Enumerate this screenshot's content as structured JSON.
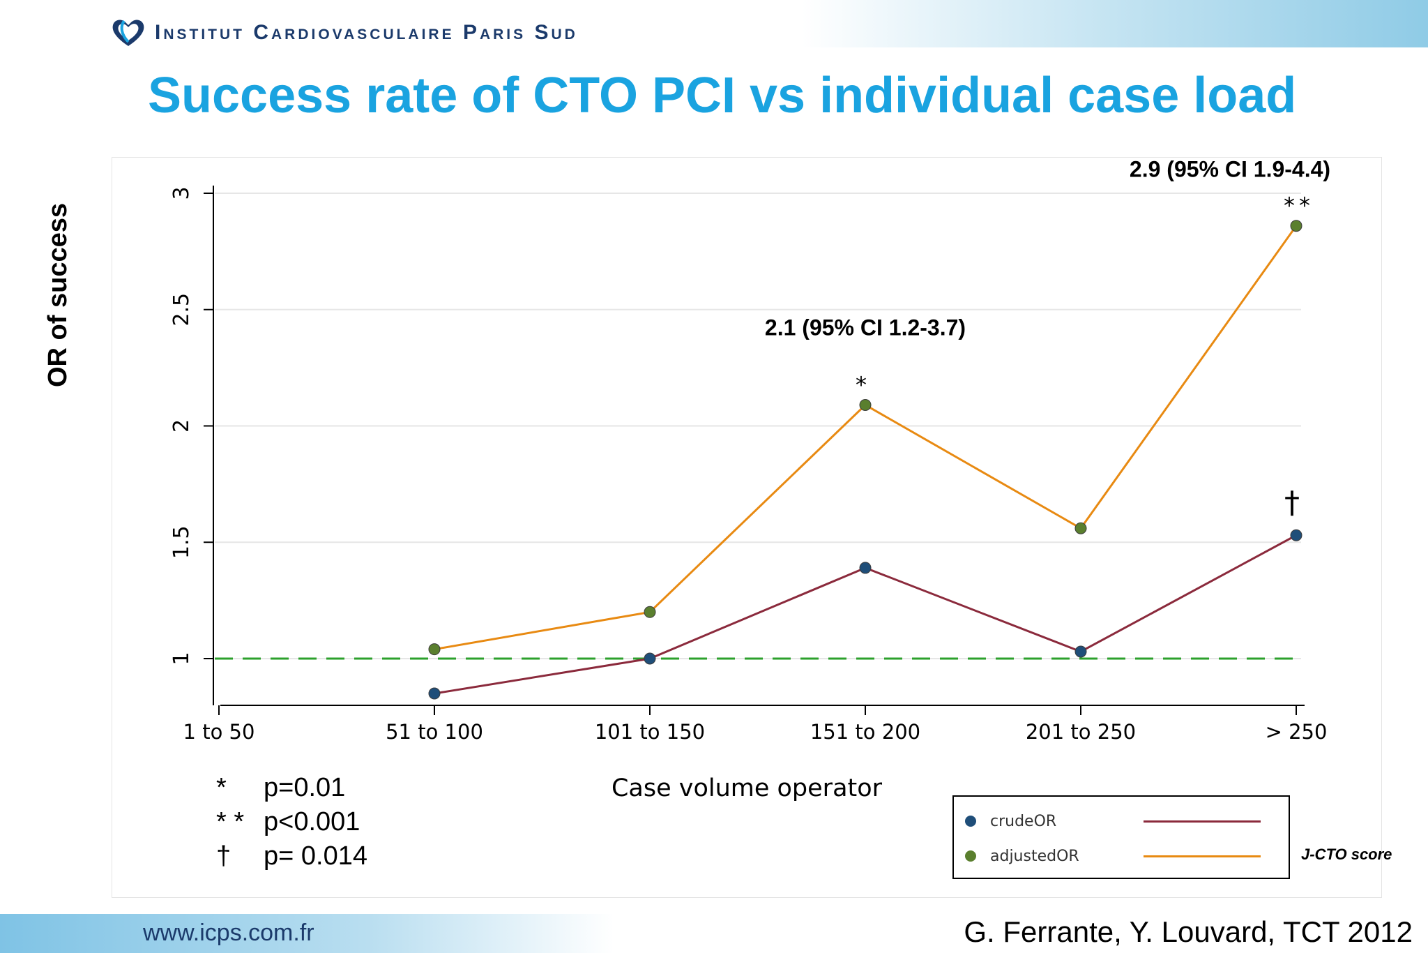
{
  "header": {
    "brand": "Institut Cardiovasculaire Paris Sud",
    "title": "Success rate of CTO PCI vs individual case load"
  },
  "colors": {
    "title": "#1aa3e0",
    "brand": "#1b3a6b",
    "crude_line": "#8b2a3c",
    "adjusted_line": "#e88a12",
    "crude_marker": "#1f4e79",
    "adjusted_marker": "#5a7f2e",
    "reference_line": "#2ca02c"
  },
  "chart_data": {
    "type": "line",
    "categories": [
      "1 to 50",
      "51 to 100",
      "101 to 150",
      "151 to 200",
      "201 to 250",
      "> 250"
    ],
    "series": [
      {
        "name": "crudeOR",
        "values": [
          null,
          0.85,
          1.0,
          1.39,
          1.03,
          1.53
        ]
      },
      {
        "name": "adjustedOR",
        "values": [
          null,
          1.04,
          1.2,
          2.09,
          1.56,
          2.86
        ]
      }
    ],
    "reference_line": {
      "y": 1,
      "style": "dashed"
    },
    "ylabel": "OR of success",
    "xlabel": "Case volume operator",
    "ylim": [
      0.8,
      3.05
    ],
    "yticks": [
      "1",
      "1.5",
      "2",
      "2.5",
      "3"
    ],
    "grid": true,
    "legend": "bottom-right",
    "annotations": [
      {
        "text": "2.1 (95% CI 1.2-3.7)",
        "category": "151 to 200"
      },
      {
        "text": "*",
        "category": "151 to 200",
        "series": "adjustedOR"
      },
      {
        "text": "2.9 (95% CI 1.9-4.4)",
        "category": "> 250"
      },
      {
        "text": "**",
        "category": "> 250",
        "series": "adjustedOR"
      },
      {
        "text": "†",
        "category": "> 250",
        "series": "crudeOR"
      }
    ]
  },
  "legend": {
    "items": [
      {
        "label": "crudeOR"
      },
      {
        "label": "adjustedOR"
      }
    ],
    "side_label": "J-CTO score"
  },
  "pvalues": [
    {
      "symbol": "*",
      "text": "p=0.01"
    },
    {
      "symbol": "* *",
      "text": "p<0.001"
    },
    {
      "symbol": "†",
      "text": "p= 0.014"
    }
  ],
  "footer": {
    "website": "www.icps.com.fr",
    "citation": "G. Ferrante, Y. Louvard, TCT 2012"
  }
}
